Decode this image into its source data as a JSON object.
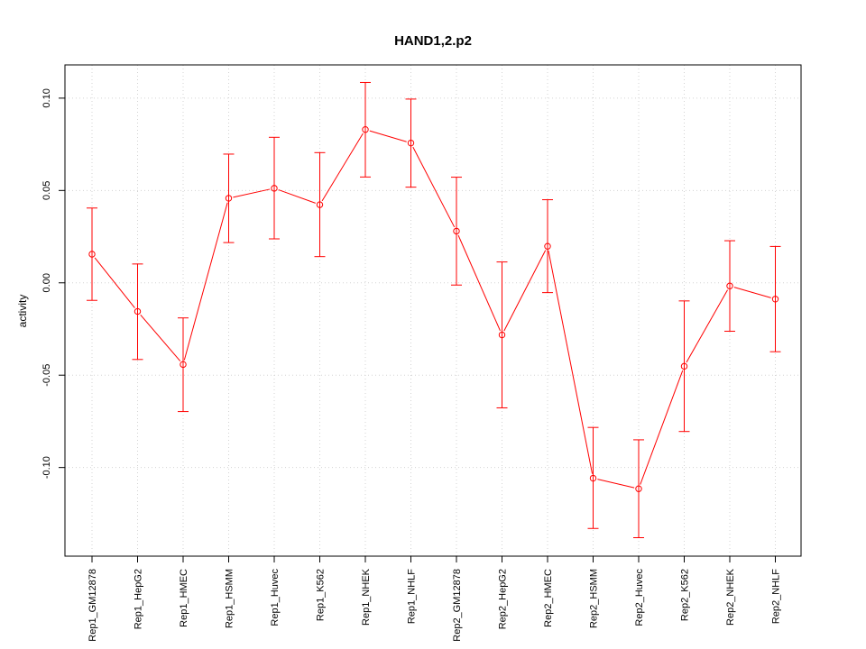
{
  "chart_data": {
    "type": "line",
    "title": "HAND1,2.p2",
    "xlabel": "",
    "ylabel": "activity",
    "categories": [
      "Rep1_GM12878",
      "Rep1_HepG2",
      "Rep1_HMEC",
      "Rep1_HSMM",
      "Rep1_Huvec",
      "Rep1_K562",
      "Rep1_NHEK",
      "Rep1_NHLF",
      "Rep2_GM12878",
      "Rep2_HepG2",
      "Rep2_HMEC",
      "Rep2_HSMM",
      "Rep2_Huvec",
      "Rep2_K562",
      "Rep2_NHEK",
      "Rep2_NHLF"
    ],
    "series": [
      {
        "values": [
          0.0155,
          -0.0155,
          -0.0442,
          0.0458,
          0.0512,
          0.0423,
          0.083,
          0.0757,
          0.028,
          -0.0282,
          0.0198,
          -0.1058,
          -0.1115,
          -0.0452,
          -0.0017,
          -0.0088
        ],
        "lower": [
          -0.0095,
          -0.0415,
          -0.0697,
          0.0218,
          0.0238,
          0.0142,
          0.0573,
          0.0518,
          -0.0012,
          -0.0677,
          -0.0053,
          -0.133,
          -0.138,
          -0.0805,
          -0.0262,
          -0.0373
        ],
        "upper": [
          0.0405,
          0.0102,
          -0.019,
          0.0697,
          0.0788,
          0.0705,
          0.1085,
          0.0995,
          0.0572,
          0.0113,
          0.045,
          -0.0783,
          -0.085,
          -0.0098,
          0.0228,
          0.0197
        ]
      }
    ],
    "ylim": [
      -0.148,
      0.118
    ],
    "yticks": [
      -0.1,
      -0.05,
      0.0,
      0.05,
      0.1
    ],
    "ytick_labels": [
      "-0.10",
      "-0.05",
      "0.00",
      "0.05",
      "0.10"
    ],
    "grid": true,
    "color": "#ff0000"
  }
}
